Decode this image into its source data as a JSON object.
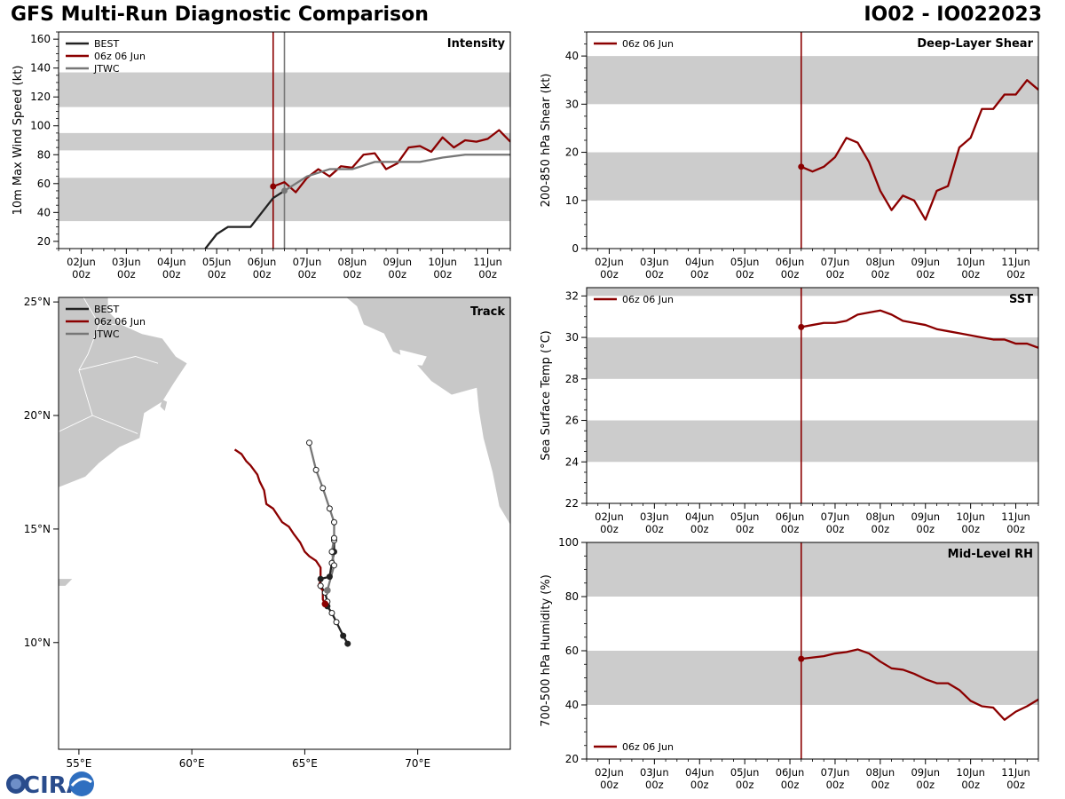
{
  "header": {
    "title_left": "GFS Multi-Run Diagnostic Comparison",
    "title_right": "IO02 - IO022023"
  },
  "logo": {
    "text": "CIRA"
  },
  "time_axis": {
    "ticks": [
      {
        "day": 2,
        "top": "02Jun",
        "bottom": "00z"
      },
      {
        "day": 3,
        "top": "03Jun",
        "bottom": "00z"
      },
      {
        "day": 4,
        "top": "04Jun",
        "bottom": "00z"
      },
      {
        "day": 5,
        "top": "05Jun",
        "bottom": "00z"
      },
      {
        "day": 6,
        "top": "06Jun",
        "bottom": "00z"
      },
      {
        "day": 7,
        "top": "07Jun",
        "bottom": "00z"
      },
      {
        "day": 8,
        "top": "08Jun",
        "bottom": "00z"
      },
      {
        "day": 9,
        "top": "09Jun",
        "bottom": "00z"
      },
      {
        "day": 10,
        "top": "10Jun",
        "bottom": "00z"
      },
      {
        "day": 11,
        "top": "11Jun",
        "bottom": "00z"
      }
    ],
    "xlim": [
      1.5,
      11.5
    ],
    "init_time_day": 6.25
  },
  "colors": {
    "best": "#222222",
    "gfs": "#8b0000",
    "jtwc": "#777777",
    "band": "#cccccc",
    "land": "#c8c8c8"
  },
  "chart_data": [
    {
      "id": "intensity",
      "type": "line",
      "title": "Intensity",
      "ylabel": "10m Max Wind Speed (kt)",
      "ylim": [
        15,
        165
      ],
      "yticks": [
        20,
        40,
        60,
        80,
        100,
        120,
        140,
        160
      ],
      "bands": [
        [
          34,
          64
        ],
        [
          83,
          95
        ],
        [
          113,
          137
        ]
      ],
      "jtwc_time_day": 6.5,
      "series": [
        {
          "name": "BEST",
          "key": "best",
          "x": [
            4.75,
            5.0,
            5.25,
            5.5,
            5.75,
            6.0,
            6.25,
            6.5
          ],
          "y": [
            15,
            25,
            30,
            30,
            30,
            40,
            50,
            55
          ]
        },
        {
          "name": "06z 06 Jun",
          "key": "gfs",
          "x": [
            6.25,
            6.5,
            6.75,
            7.0,
            7.25,
            7.5,
            7.75,
            8.0,
            8.25,
            8.5,
            8.75,
            9.0,
            9.25,
            9.5,
            9.75,
            10.0,
            10.25,
            10.5,
            10.75,
            11.0,
            11.25,
            11.5
          ],
          "y": [
            58,
            61,
            54,
            64,
            70,
            65,
            72,
            71,
            80,
            81,
            70,
            74,
            85,
            86,
            82,
            92,
            85,
            90,
            89,
            91,
            97,
            89
          ]
        },
        {
          "name": "JTWC",
          "key": "jtwc",
          "x": [
            6.5,
            7.0,
            7.5,
            8.0,
            8.5,
            9.0,
            9.5,
            10.0,
            10.5,
            11.0,
            11.5
          ],
          "y": [
            55,
            65,
            70,
            70,
            75,
            75,
            75,
            78,
            80,
            80,
            80
          ]
        }
      ]
    },
    {
      "id": "shear",
      "type": "line",
      "title": "Deep-Layer Shear",
      "ylabel": "200-850 hPa Shear (kt)",
      "ylim": [
        0,
        45
      ],
      "yticks": [
        0,
        10,
        20,
        30,
        40
      ],
      "bands": [
        [
          10,
          20
        ],
        [
          30,
          40
        ]
      ],
      "series": [
        {
          "name": "06z 06 Jun",
          "key": "gfs",
          "x": [
            6.25,
            6.5,
            6.75,
            7.0,
            7.25,
            7.5,
            7.75,
            8.0,
            8.25,
            8.5,
            8.75,
            9.0,
            9.25,
            9.5,
            9.75,
            10.0,
            10.25,
            10.5,
            10.75,
            11.0,
            11.25,
            11.5
          ],
          "y": [
            17,
            16,
            17,
            19,
            23,
            22,
            18,
            12,
            8,
            11,
            10,
            6,
            12,
            13,
            21,
            23,
            29,
            29,
            32,
            32,
            35,
            33
          ]
        }
      ]
    },
    {
      "id": "sst",
      "type": "line",
      "title": "SST",
      "ylabel": "Sea Surface Temp (°C)",
      "ylim": [
        22,
        32.4
      ],
      "yticks": [
        22,
        24,
        26,
        28,
        30,
        32
      ],
      "bands": [
        [
          24,
          26
        ],
        [
          28,
          30
        ],
        [
          32,
          32.4
        ]
      ],
      "series": [
        {
          "name": "06z 06 Jun",
          "key": "gfs",
          "x": [
            6.25,
            6.5,
            6.75,
            7.0,
            7.25,
            7.5,
            7.75,
            8.0,
            8.25,
            8.5,
            8.75,
            9.0,
            9.25,
            9.5,
            9.75,
            10.0,
            10.25,
            10.5,
            10.75,
            11.0,
            11.25,
            11.5
          ],
          "y": [
            30.5,
            30.6,
            30.7,
            30.7,
            30.8,
            31.1,
            31.2,
            31.3,
            31.1,
            30.8,
            30.7,
            30.6,
            30.4,
            30.3,
            30.2,
            30.1,
            30.0,
            29.9,
            29.9,
            29.7,
            29.7,
            29.5
          ]
        }
      ]
    },
    {
      "id": "rh",
      "type": "line",
      "title": "Mid-Level RH",
      "ylabel": "700-500 hPa Humidity (%)",
      "ylim": [
        20,
        100
      ],
      "yticks": [
        20,
        40,
        60,
        80,
        100
      ],
      "bands": [
        [
          40,
          60
        ],
        [
          80,
          100
        ]
      ],
      "series": [
        {
          "name": "06z 06 Jun",
          "key": "gfs",
          "x": [
            6.25,
            6.5,
            6.75,
            7.0,
            7.25,
            7.5,
            7.75,
            8.0,
            8.25,
            8.5,
            8.75,
            9.0,
            9.25,
            9.5,
            9.75,
            10.0,
            10.25,
            10.5,
            10.75,
            11.0,
            11.25,
            11.5
          ],
          "y": [
            57,
            57.5,
            58,
            59,
            59.5,
            60.5,
            59,
            56,
            53.5,
            53,
            51.5,
            49.5,
            48,
            48,
            45.5,
            41.5,
            39.5,
            39,
            34.5,
            37.5,
            39.5,
            42
          ]
        }
      ]
    },
    {
      "id": "track",
      "type": "scatter",
      "title": "Track",
      "xlim": [
        54.1,
        74.1
      ],
      "ylim": [
        5.3,
        25.2
      ],
      "xticks": [
        {
          "v": 55,
          "label": "55°E"
        },
        {
          "v": 60,
          "label": "60°E"
        },
        {
          "v": 65,
          "label": "65°E"
        },
        {
          "v": 70,
          "label": "70°E"
        }
      ],
      "yticks": [
        {
          "v": 10,
          "label": "10°N"
        },
        {
          "v": 15,
          "label": "15°N"
        },
        {
          "v": 20,
          "label": "20°N"
        },
        {
          "v": 25,
          "label": "25°N"
        }
      ],
      "series": [
        {
          "name": "BEST",
          "key": "best",
          "lon": [
            66.9,
            66.7,
            66.4,
            66.2,
            66.0,
            66.0,
            65.9,
            65.7,
            65.7,
            66.1,
            66.2,
            66.3,
            66.3
          ],
          "lat": [
            9.95,
            10.3,
            10.9,
            11.3,
            11.6,
            11.8,
            12.2,
            12.5,
            12.8,
            12.9,
            13.5,
            14.0,
            14.5
          ],
          "markers": [
            1,
            1,
            0,
            0,
            1,
            0,
            0,
            0,
            1,
            1,
            0,
            1,
            0
          ]
        },
        {
          "name": "06z 06 Jun",
          "key": "gfs",
          "lon": [
            65.9,
            65.8,
            65.8,
            65.6,
            65.7,
            65.7,
            65.5,
            65.2,
            65.0,
            64.8,
            64.5,
            64.3,
            64.0,
            63.6,
            63.3,
            63.2,
            63.0,
            62.9,
            62.6,
            62.4,
            62.2,
            61.9
          ],
          "lat": [
            11.7,
            11.9,
            12.3,
            12.5,
            12.7,
            13.3,
            13.6,
            13.8,
            14.0,
            14.4,
            14.8,
            15.1,
            15.3,
            15.9,
            16.1,
            16.7,
            17.1,
            17.4,
            17.8,
            18.0,
            18.3,
            18.5
          ],
          "markers": [
            1,
            0,
            0,
            0,
            0,
            0,
            0,
            0,
            0,
            0,
            0,
            0,
            0,
            0,
            0,
            0,
            0,
            0,
            0,
            0,
            0,
            0
          ]
        },
        {
          "name": "JTWC",
          "key": "jtwc",
          "lon": [
            66.0,
            66.3,
            66.2,
            66.3,
            66.3,
            66.1,
            65.8,
            65.5,
            65.2
          ],
          "lat": [
            12.3,
            13.4,
            14.0,
            14.6,
            15.3,
            15.9,
            16.8,
            17.6,
            18.8
          ],
          "markers": [
            2,
            0,
            0,
            0,
            0,
            0,
            0,
            0,
            0
          ]
        }
      ]
    }
  ]
}
